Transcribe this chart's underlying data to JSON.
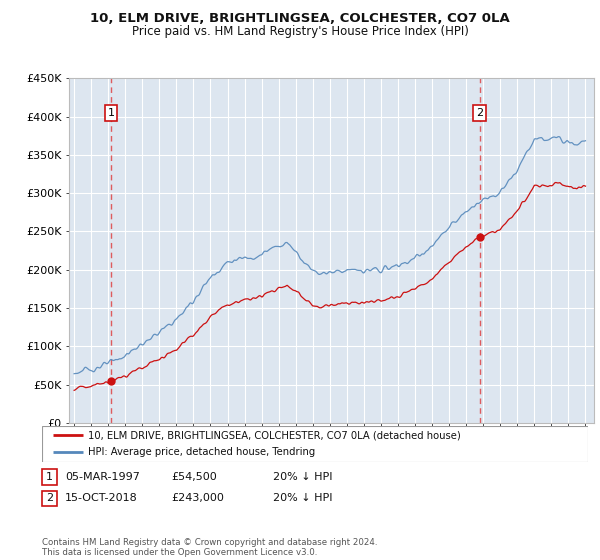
{
  "title_line1": "10, ELM DRIVE, BRIGHTLINGSEA, COLCHESTER, CO7 0LA",
  "title_line2": "Price paid vs. HM Land Registry's House Price Index (HPI)",
  "ylim": [
    0,
    450000
  ],
  "yticks": [
    0,
    50000,
    100000,
    150000,
    200000,
    250000,
    300000,
    350000,
    400000,
    450000
  ],
  "ytick_labels": [
    "£0",
    "£50K",
    "£100K",
    "£150K",
    "£200K",
    "£250K",
    "£300K",
    "£350K",
    "£400K",
    "£450K"
  ],
  "background_color": "#ffffff",
  "plot_bg_color": "#dde6f0",
  "grid_color": "#ffffff",
  "hpi_color": "#5588bb",
  "price_color": "#cc1111",
  "point1_year": 1997.17,
  "point1_price": 54500,
  "point2_year": 2018.79,
  "point2_price": 243000,
  "legend_property": "10, ELM DRIVE, BRIGHTLINGSEA, COLCHESTER, CO7 0LA (detached house)",
  "legend_hpi": "HPI: Average price, detached house, Tendring",
  "table_rows": [
    {
      "num": "1",
      "date": "05-MAR-1997",
      "price": "£54,500",
      "note": "20% ↓ HPI"
    },
    {
      "num": "2",
      "date": "15-OCT-2018",
      "price": "£243,000",
      "note": "20% ↓ HPI"
    }
  ],
  "footnote": "Contains HM Land Registry data © Crown copyright and database right 2024.\nThis data is licensed under the Open Government Licence v3.0."
}
